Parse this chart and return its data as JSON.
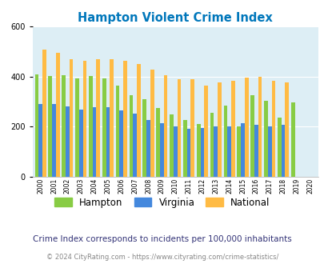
{
  "title": "Hampton Violent Crime Index",
  "years": [
    2000,
    2001,
    2002,
    2003,
    2004,
    2005,
    2006,
    2007,
    2008,
    2009,
    2010,
    2011,
    2012,
    2013,
    2014,
    2015,
    2016,
    2017,
    2018,
    2019,
    2020
  ],
  "hampton": [
    408,
    403,
    407,
    393,
    402,
    393,
    365,
    325,
    310,
    275,
    248,
    228,
    212,
    255,
    285,
    200,
    325,
    302,
    235,
    298,
    0
  ],
  "virginia": [
    290,
    290,
    280,
    268,
    278,
    278,
    265,
    252,
    227,
    213,
    200,
    193,
    195,
    200,
    200,
    215,
    208,
    202,
    207,
    0,
    0
  ],
  "national": [
    507,
    495,
    470,
    462,
    470,
    470,
    462,
    450,
    428,
    405,
    388,
    388,
    365,
    376,
    382,
    397,
    398,
    382,
    378,
    0,
    0
  ],
  "hampton_color": "#88cc44",
  "virginia_color": "#4488dd",
  "national_color": "#ffbb44",
  "bg_color": "#ddeef5",
  "title_color": "#0077bb",
  "ylim": [
    0,
    600
  ],
  "yticks": [
    0,
    200,
    400,
    600
  ],
  "legend_labels": [
    "Hampton",
    "Virginia",
    "National"
  ],
  "subtitle": "Crime Index corresponds to incidents per 100,000 inhabitants",
  "footer": "© 2024 CityRating.com - https://www.cityrating.com/crime-statistics/",
  "subtitle_color": "#333377",
  "footer_color": "#888888",
  "grid_color": "#ffffff",
  "bar_width": 0.28
}
